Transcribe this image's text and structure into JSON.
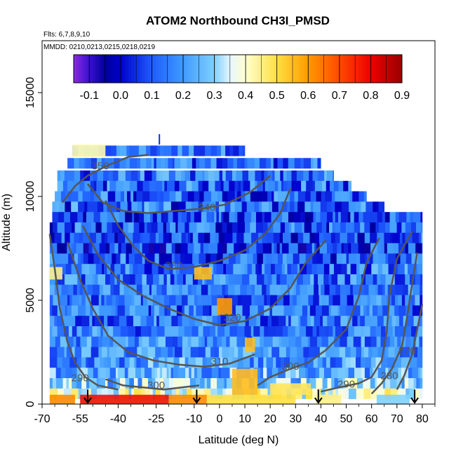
{
  "chart_data": {
    "type": "heatmap",
    "title": "ATOM2 Northbound CH3I_PMSD",
    "subtitle_flights": "Flts: 6,7,8,9,10",
    "subtitle_dates": "MMDD: 0210,0213,0215,0218,0219",
    "xlabel": "Latitude (deg N)",
    "ylabel": "Altitude (m)",
    "xlim": [
      -70,
      85
    ],
    "ylim": [
      0,
      17500
    ],
    "x_ticks": [
      "-70",
      "-55",
      "-40",
      "-25",
      "-10",
      "0",
      "10",
      "20",
      "30",
      "40",
      "50",
      "60",
      "70",
      "80"
    ],
    "x_tick_values": [
      -70,
      -55,
      -40,
      -25,
      -10,
      0,
      10,
      20,
      30,
      40,
      50,
      60,
      70,
      80
    ],
    "y_ticks": [
      "0",
      "5000",
      "10000",
      "15000"
    ],
    "y_tick_values": [
      0,
      5000,
      10000,
      15000
    ],
    "colorbar": {
      "range": [
        -0.15,
        0.9
      ],
      "tick_labels": [
        "-0.1",
        "0.0",
        "0.1",
        "0.2",
        "0.3",
        "0.4",
        "0.5",
        "0.6",
        "0.7",
        "0.8",
        "0.9"
      ],
      "tick_values": [
        -0.1,
        0.0,
        0.1,
        0.2,
        0.3,
        0.4,
        0.5,
        0.6,
        0.7,
        0.8,
        0.9
      ],
      "stops": [
        {
          "v": -0.15,
          "c": "#8a2be2"
        },
        {
          "v": -0.1,
          "c": "#3a10d0"
        },
        {
          "v": -0.05,
          "c": "#00009a"
        },
        {
          "v": 0.0,
          "c": "#0000cc"
        },
        {
          "v": 0.1,
          "c": "#1e5cff"
        },
        {
          "v": 0.2,
          "c": "#3f9bff"
        },
        {
          "v": 0.3,
          "c": "#7fd0ff"
        },
        {
          "v": 0.35,
          "c": "#e6f6ff"
        },
        {
          "v": 0.4,
          "c": "#ffffd0"
        },
        {
          "v": 0.5,
          "c": "#ffe040"
        },
        {
          "v": 0.6,
          "c": "#ff9a00"
        },
        {
          "v": 0.7,
          "c": "#ff4a00"
        },
        {
          "v": 0.8,
          "c": "#ee0000"
        },
        {
          "v": 0.9,
          "c": "#990000"
        }
      ]
    },
    "heatmap_rows": [
      {
        "alt": 12200,
        "x0": -58,
        "x1": 10,
        "base": 0.15,
        "amp": 0.12
      },
      {
        "alt": 11600,
        "x0": -60,
        "x1": 40,
        "base": 0.12,
        "amp": 0.13
      },
      {
        "alt": 11000,
        "x0": -64,
        "x1": 45,
        "base": 0.14,
        "amp": 0.14
      },
      {
        "alt": 10500,
        "x0": -64,
        "x1": 52,
        "base": 0.13,
        "amp": 0.15
      },
      {
        "alt": 10000,
        "x0": -65,
        "x1": 58,
        "base": 0.12,
        "amp": 0.15
      },
      {
        "alt": 9500,
        "x0": -66,
        "x1": 65,
        "base": 0.12,
        "amp": 0.16
      },
      {
        "alt": 9000,
        "x0": -66,
        "x1": 80,
        "base": 0.1,
        "amp": 0.15
      },
      {
        "alt": 8500,
        "x0": -67,
        "x1": 80,
        "base": 0.1,
        "amp": 0.16
      },
      {
        "alt": 8000,
        "x0": -67,
        "x1": 80,
        "base": 0.08,
        "amp": 0.14
      },
      {
        "alt": 7500,
        "x0": -67,
        "x1": 80,
        "base": 0.08,
        "amp": 0.15
      },
      {
        "alt": 7000,
        "x0": -67,
        "x1": 80,
        "base": 0.11,
        "amp": 0.15
      },
      {
        "alt": 6500,
        "x0": -67,
        "x1": 80,
        "base": 0.14,
        "amp": 0.14
      },
      {
        "alt": 6000,
        "x0": -67,
        "x1": 80,
        "base": 0.15,
        "amp": 0.13
      },
      {
        "alt": 5500,
        "x0": -67,
        "x1": 80,
        "base": 0.14,
        "amp": 0.13
      },
      {
        "alt": 5000,
        "x0": -67,
        "x1": 80,
        "base": 0.13,
        "amp": 0.13
      },
      {
        "alt": 4500,
        "x0": -67,
        "x1": 80,
        "base": 0.13,
        "amp": 0.13
      },
      {
        "alt": 4000,
        "x0": -67,
        "x1": 80,
        "base": 0.14,
        "amp": 0.13
      },
      {
        "alt": 3500,
        "x0": -67,
        "x1": 80,
        "base": 0.15,
        "amp": 0.13
      },
      {
        "alt": 3000,
        "x0": -67,
        "x1": 80,
        "base": 0.17,
        "amp": 0.13
      },
      {
        "alt": 2500,
        "x0": -67,
        "x1": 80,
        "base": 0.18,
        "amp": 0.13
      },
      {
        "alt": 2000,
        "x0": -67,
        "x1": 80,
        "base": 0.2,
        "amp": 0.13
      },
      {
        "alt": 1500,
        "x0": -67,
        "x1": 80,
        "base": 0.22,
        "amp": 0.13
      },
      {
        "alt": 1000,
        "x0": -67,
        "x1": 80,
        "base": 0.28,
        "amp": 0.14
      },
      {
        "alt": 500,
        "x0": -67,
        "x1": 80,
        "base": 0.38,
        "amp": 0.12
      }
    ],
    "hot_spots": [
      {
        "x0": -55,
        "x1": -20,
        "alt0": 0,
        "alt1": 450,
        "v": 0.78
      },
      {
        "x0": -67,
        "x1": -57,
        "alt0": 0,
        "alt1": 450,
        "v": 0.62
      },
      {
        "x0": -20,
        "x1": -5,
        "alt0": 0,
        "alt1": 450,
        "v": 0.62
      },
      {
        "x0": -5,
        "x1": 30,
        "alt0": 0,
        "alt1": 450,
        "v": 0.5
      },
      {
        "x0": 5,
        "x1": 15,
        "alt0": 450,
        "alt1": 1700,
        "v": 0.55
      },
      {
        "x0": 10,
        "x1": 14,
        "alt0": 2500,
        "alt1": 3200,
        "v": 0.55
      },
      {
        "x0": -1,
        "x1": 5,
        "alt0": 4300,
        "alt1": 5100,
        "v": 0.6
      },
      {
        "x0": -10,
        "x1": -3,
        "alt0": 6000,
        "alt1": 6600,
        "v": 0.55
      },
      {
        "x0": 20,
        "x1": 36,
        "alt0": 450,
        "alt1": 1000,
        "v": 0.48
      },
      {
        "x0": 38,
        "x1": 48,
        "alt0": 0,
        "alt1": 450,
        "v": 0.45
      },
      {
        "x0": -58,
        "x1": -45,
        "alt0": 11900,
        "alt1": 12500,
        "v": 0.42
      },
      {
        "x0": -67,
        "x1": -62,
        "alt0": 6000,
        "alt1": 6600,
        "v": 0.45
      },
      {
        "x0": 62,
        "x1": 75,
        "alt0": 0,
        "alt1": 450,
        "v": 0.3
      }
    ],
    "contours": [
      {
        "label": "290",
        "label_x": -55,
        "label_alt": 1100,
        "points": [
          [
            -67,
            8200
          ],
          [
            -65,
            6500
          ],
          [
            -63,
            4600
          ],
          [
            -60,
            3000
          ],
          [
            -57,
            2000
          ],
          [
            -53,
            1300
          ],
          [
            -48,
            900
          ],
          [
            -40,
            700
          ]
        ]
      },
      {
        "label": "290",
        "label_x": 50,
        "label_alt": 800,
        "points": [
          [
            40,
            600
          ],
          [
            47,
            800
          ],
          [
            55,
            1000
          ],
          [
            60,
            1300
          ],
          [
            64,
            2100
          ],
          [
            66,
            3500
          ],
          [
            67,
            5200
          ],
          [
            70,
            7000
          ],
          [
            76,
            8300
          ]
        ]
      },
      {
        "label": "300",
        "label_x": -25,
        "label_alt": 750,
        "points": [
          [
            -45,
            1200
          ],
          [
            -38,
            900
          ],
          [
            -30,
            800
          ],
          [
            -22,
            700
          ],
          [
            -15,
            800
          ],
          [
            -8,
            900
          ]
        ]
      },
      {
        "label": "300",
        "label_x": 28,
        "label_alt": 1650,
        "points": [
          [
            15,
            900
          ],
          [
            20,
            1300
          ],
          [
            28,
            1700
          ],
          [
            35,
            2000
          ],
          [
            42,
            2600
          ],
          [
            50,
            3600
          ],
          [
            55,
            5200
          ],
          [
            58,
            6800
          ],
          [
            63,
            8000
          ]
        ]
      },
      {
        "label": "310",
        "label_x": 0,
        "label_alt": 1900,
        "points": [
          [
            -60,
            7800
          ],
          [
            -55,
            6000
          ],
          [
            -50,
            4600
          ],
          [
            -44,
            3300
          ],
          [
            -36,
            2500
          ],
          [
            -26,
            2100
          ],
          [
            -16,
            1900
          ],
          [
            -6,
            1800
          ],
          [
            4,
            1950
          ],
          [
            14,
            2400
          ]
        ]
      },
      {
        "label": "320",
        "label_x": 5,
        "label_alt": 4000,
        "points": [
          [
            -54,
            8600
          ],
          [
            -48,
            7200
          ],
          [
            -40,
            6000
          ],
          [
            -30,
            5200
          ],
          [
            -20,
            4600
          ],
          [
            -10,
            4100
          ],
          [
            0,
            3800
          ],
          [
            10,
            4000
          ],
          [
            20,
            4600
          ],
          [
            28,
            5600
          ],
          [
            34,
            6800
          ],
          [
            42,
            7900
          ]
        ]
      },
      {
        "label": "330",
        "label_x": -18,
        "label_alt": 6500,
        "points": [
          [
            -45,
            9800
          ],
          [
            -40,
            8600
          ],
          [
            -34,
            7600
          ],
          [
            -28,
            6900
          ],
          [
            -20,
            6500
          ],
          [
            -10,
            6600
          ],
          [
            0,
            6900
          ],
          [
            10,
            7400
          ],
          [
            18,
            8200
          ],
          [
            24,
            9200
          ],
          [
            28,
            10400
          ]
        ]
      },
      {
        "label": "340",
        "label_x": -5,
        "label_alt": 9300,
        "points": [
          [
            -52,
            10600
          ],
          [
            -46,
            9700
          ],
          [
            -38,
            9300
          ],
          [
            -28,
            9200
          ],
          [
            -18,
            9300
          ],
          [
            -8,
            9400
          ],
          [
            2,
            9600
          ],
          [
            12,
            10200
          ],
          [
            20,
            11000
          ]
        ]
      },
      {
        "label": "350",
        "label_x": -47,
        "label_alt": 11300,
        "points": [
          [
            -62,
            9700
          ],
          [
            -57,
            10500
          ],
          [
            -52,
            11000
          ],
          [
            -44,
            11500
          ],
          [
            -36,
            11900
          ],
          [
            -28,
            12000
          ]
        ]
      },
      {
        "label": "280",
        "label_x": 67,
        "label_alt": 1200,
        "points": [
          [
            60,
            500
          ],
          [
            64,
            1000
          ],
          [
            68,
            1700
          ],
          [
            72,
            2800
          ],
          [
            74,
            4200
          ],
          [
            76,
            5800
          ],
          [
            78,
            7300
          ]
        ]
      },
      {
        "label": "270",
        "label_x": 74,
        "label_alt": 2400,
        "points": [
          [
            70,
            700
          ],
          [
            73,
            1400
          ],
          [
            76,
            2400
          ],
          [
            78,
            3600
          ],
          [
            80,
            4800
          ]
        ]
      }
    ],
    "arrows_lat": [
      -52,
      -9,
      39,
      77
    ]
  }
}
